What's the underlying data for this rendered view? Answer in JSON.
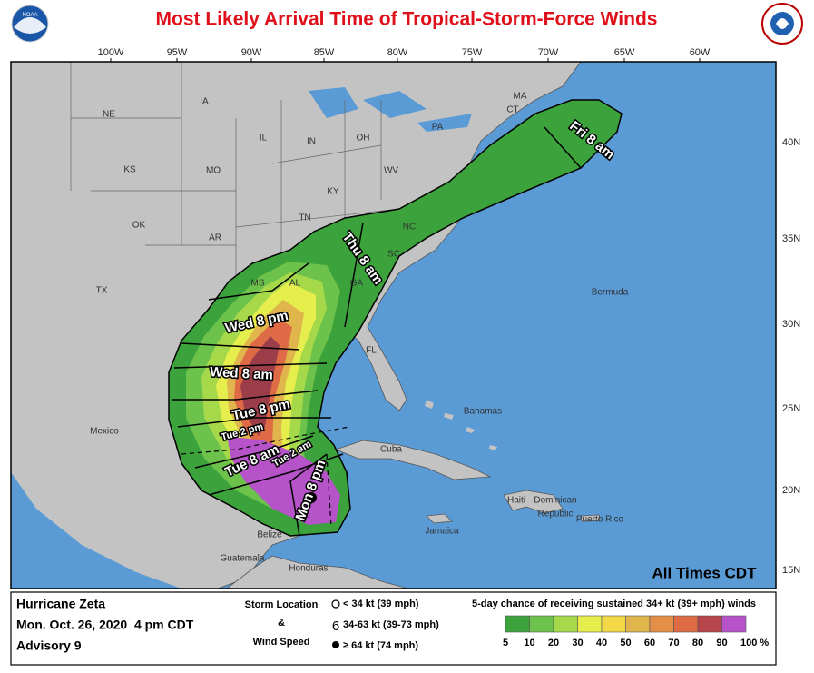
{
  "header": {
    "title": "Most Likely Arrival Time of Tropical-Storm-Force Winds"
  },
  "map": {
    "lon_labels": [
      "100W",
      "95W",
      "90W",
      "85W",
      "80W",
      "75W",
      "70W",
      "65W",
      "60W"
    ],
    "lat_labels": [
      "40N",
      "35N",
      "30N",
      "25N",
      "20N",
      "15N"
    ],
    "place_labels": [
      "NE",
      "IA",
      "IL",
      "IN",
      "OH",
      "PA",
      "MA",
      "CT",
      "KS",
      "MO",
      "WV",
      "KY",
      "TN",
      "OK",
      "AR",
      "NC",
      "SC",
      "MS",
      "AL",
      "GA",
      "TX",
      "FL",
      "Mexico",
      "Bermuda",
      "Bahamas",
      "Cuba",
      "Jamaica",
      "Haiti",
      "Dominican",
      "Republic",
      "Puerto Rico",
      "Belize",
      "Guatemala",
      "Honduras"
    ],
    "time_labels": [
      "Fri 8 am",
      "Thu 8 am",
      "Wed 8 pm",
      "Wed 8 am",
      "Tue 8 pm",
      "Tue 2 pm",
      "Tue 8 am",
      "Tue 2 am",
      "Mon 8 pm"
    ],
    "note": "All Times CDT"
  },
  "footer": {
    "storm": [
      "Hurricane Zeta",
      "Mon. Oct. 26, 2020  4 pm CDT",
      "Advisory 9"
    ],
    "legend_titles": [
      "Storm Location",
      "&",
      "Wind Speed"
    ],
    "legend_items": [
      "< 34 kt (39 mph)",
      "34-63 kt (39-73 mph)",
      "≥ 64 kt (74 mph)"
    ],
    "scale_title": "5-day chance of receiving sustained 34+ kt (39+ mph) winds",
    "scale_labels": [
      "5",
      "10",
      "20",
      "30",
      "40",
      "50",
      "60",
      "70",
      "80",
      "90",
      "100 %"
    ]
  }
}
